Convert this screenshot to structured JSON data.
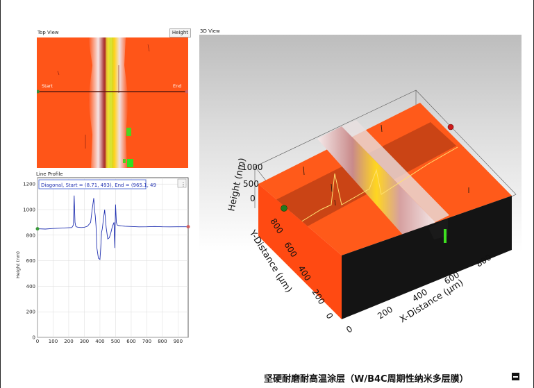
{
  "top_view": {
    "title": "Top View",
    "mode_button": "Height",
    "start_label": "Start",
    "end_label": "End"
  },
  "line_profile": {
    "title": "Line Profile",
    "legend": "Diagonal, Start = (8.71, 493), End = (965.1, 49",
    "menu_icon": "⋮",
    "ylabel": "Height (nm)",
    "ytick_labels": [
      "0",
      "200",
      "400",
      "600",
      "800",
      "1000",
      "1200"
    ],
    "xtick_labels": [
      "0",
      "100",
      "200",
      "300",
      "400",
      "500",
      "600",
      "700",
      "800",
      "900"
    ]
  },
  "view_3d": {
    "title": "3D View",
    "z_label": "Height (nm)",
    "z_ticks": [
      "1000",
      "500",
      "0"
    ],
    "y_label": "Y-Distance (μm)",
    "y_ticks": [
      "800",
      "600",
      "400",
      "200",
      "0"
    ],
    "x_label": "X-Distance (μm)",
    "x_ticks": [
      "0",
      "200",
      "400",
      "600",
      "800"
    ],
    "colors": {
      "surface": "#ff5a1a",
      "ridge": "#e8dede",
      "side": "#111111"
    }
  },
  "caption": "坚硬耐磨耐高温涂层（W/B4C周期性纳米多层膜）",
  "chart_data": {
    "type": "line",
    "title": "",
    "xlabel": "",
    "ylabel": "Height (nm)",
    "xlim": [
      0,
      965
    ],
    "ylim": [
      0,
      1250
    ],
    "grid": true,
    "series": [
      {
        "name": "Diagonal, Start = (8.71, 493), End = (965.1, 49",
        "x": [
          0,
          50,
          100,
          150,
          200,
          220,
          230,
          235,
          240,
          245,
          250,
          260,
          280,
          300,
          320,
          340,
          350,
          360,
          365,
          370,
          375,
          380,
          390,
          400,
          405,
          410,
          415,
          420,
          430,
          440,
          450,
          460,
          470,
          480,
          490,
          495,
          500,
          505,
          510,
          520,
          540,
          560,
          600,
          650,
          700,
          750,
          800,
          850,
          900,
          950,
          965
        ],
        "y": [
          850,
          848,
          852,
          855,
          858,
          860,
          880,
          1110,
          900,
          870,
          865,
          862,
          860,
          862,
          870,
          900,
          1000,
          1090,
          1000,
          950,
          870,
          700,
          620,
          610,
          700,
          820,
          850,
          900,
          1000,
          860,
          770,
          780,
          820,
          870,
          900,
          700,
          1040,
          900,
          880,
          875,
          872,
          870,
          868,
          865,
          866,
          868,
          866,
          865,
          866,
          866,
          866
        ]
      }
    ]
  }
}
